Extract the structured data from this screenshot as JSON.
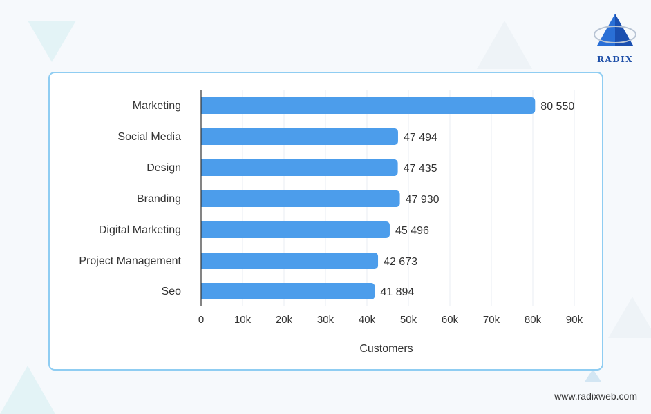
{
  "brand": {
    "logo_text": "RADIX",
    "website": "www.radixweb.com"
  },
  "colors": {
    "bar": "#4c9deb",
    "grid": "#e8eef3",
    "axis": "#333333",
    "border": "#8fcdf2"
  },
  "chart_data": {
    "type": "bar",
    "orientation": "horizontal",
    "categories": [
      "Marketing",
      "Social Media",
      "Design",
      "Branding",
      "Digital Marketing",
      "Project Management",
      "Seo"
    ],
    "values": [
      80550,
      47494,
      47435,
      47930,
      45496,
      42673,
      41894
    ],
    "value_labels": [
      "80 550",
      "47 494",
      "47 435",
      "47 930",
      "45 496",
      "42 673",
      "41 894"
    ],
    "xlabel": "Customers",
    "ylabel": "",
    "title": "",
    "xlim": [
      0,
      90000
    ],
    "xticks": [
      0,
      10000,
      20000,
      30000,
      40000,
      50000,
      60000,
      70000,
      80000,
      90000
    ],
    "xtick_labels": [
      "0",
      "10k",
      "20k",
      "30k",
      "40k",
      "50k",
      "60k",
      "70k",
      "80k",
      "90k"
    ],
    "grid": true,
    "legend": "none"
  }
}
